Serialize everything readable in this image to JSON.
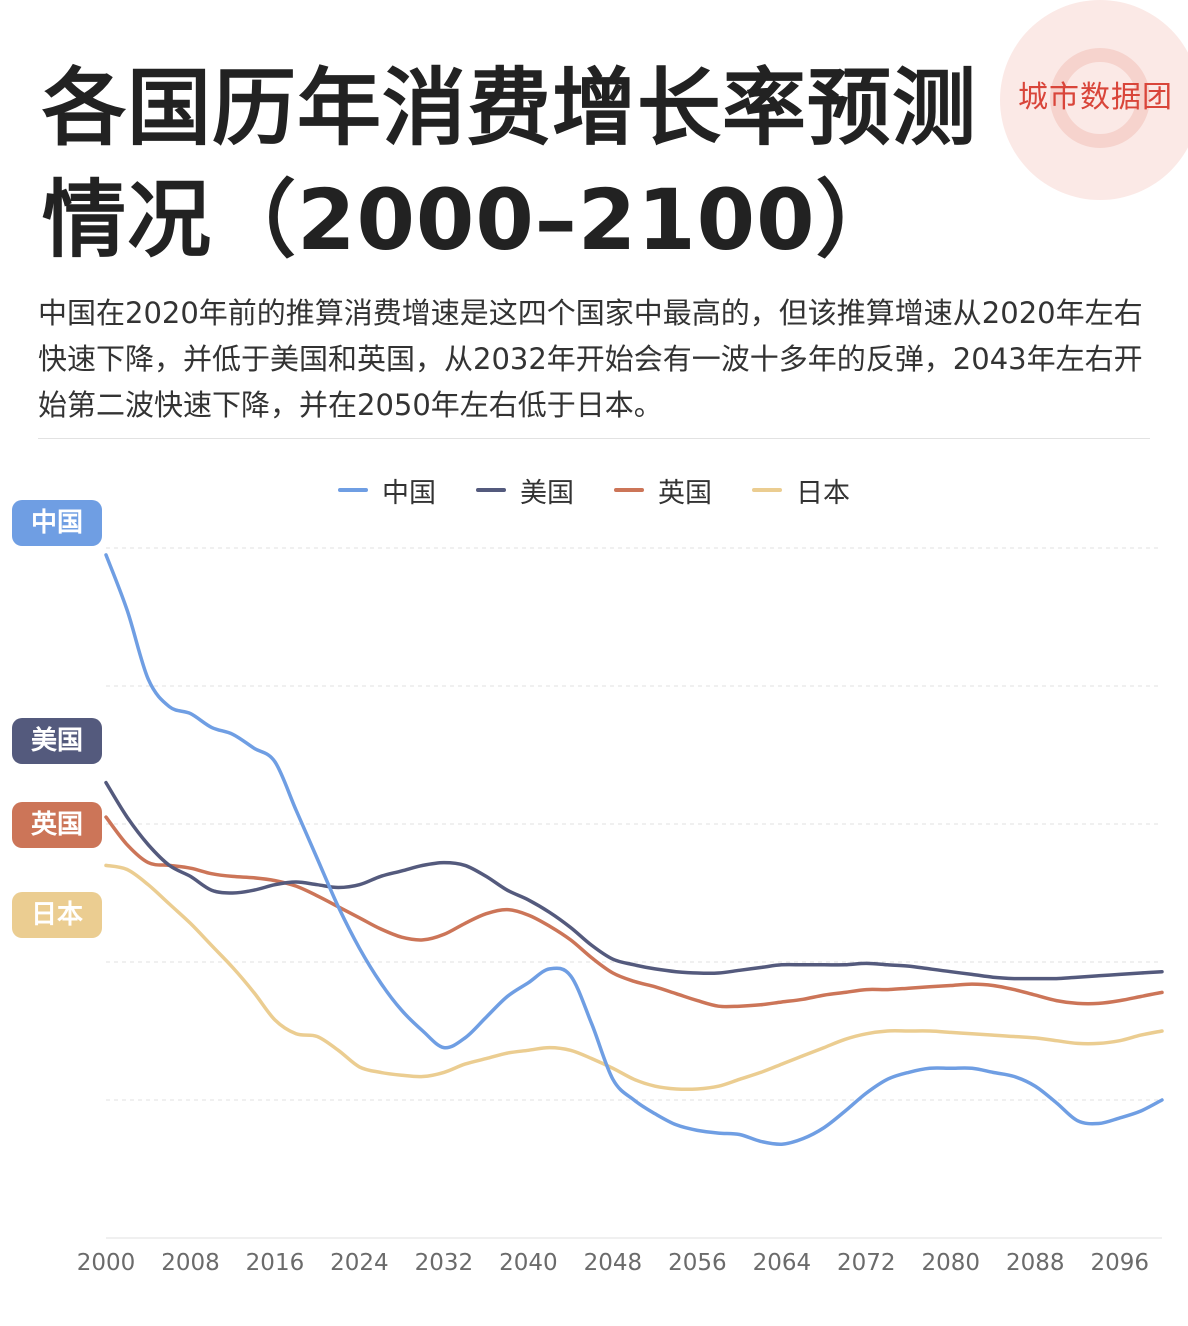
{
  "header": {
    "title": "各国历年消费增长率预测情况（2000–2100）",
    "brand": "城市数据团",
    "description": "中国在2020年前的推算消费增速是这四个国家中最高的，但该推算增速从2020年左右快速下降，并低于美国和英国，从2032年开始会有一波十多年的反弹，2043年左右开始第二波快速下降，并在2050年左右低于日本。"
  },
  "colors": {
    "china": "#6f9ee3",
    "usa": "#545a7d",
    "uk": "#cc7558",
    "japan": "#ebcd91",
    "grid": "#e6e6e6",
    "brand": "#d9453a"
  },
  "chart_data": {
    "type": "line",
    "title": "各国历年消费增长率预测情况（2000–2100）",
    "xlabel": "",
    "ylabel": "",
    "x_ticks": [
      "2000",
      "2008",
      "2016",
      "2024",
      "2032",
      "2040",
      "2048",
      "2056",
      "2064",
      "2072",
      "2080",
      "2088",
      "2096"
    ],
    "xlim": [
      2000,
      2100
    ],
    "ylim": [
      0,
      5
    ],
    "grid": true,
    "legend_position": "top-center",
    "series": [
      {
        "name": "中国",
        "color_key": "china",
        "x": [
          2000,
          2002,
          2004,
          2006,
          2008,
          2010,
          2012,
          2014,
          2016,
          2018,
          2020,
          2022,
          2024,
          2026,
          2028,
          2030,
          2032,
          2034,
          2036,
          2038,
          2040,
          2042,
          2044,
          2046,
          2048,
          2050,
          2052,
          2054,
          2056,
          2058,
          2060,
          2062,
          2064,
          2066,
          2068,
          2070,
          2072,
          2074,
          2076,
          2078,
          2080,
          2082,
          2084,
          2086,
          2088,
          2090,
          2092,
          2094,
          2096,
          2098,
          2100
        ],
        "values": [
          4.95,
          4.55,
          4.05,
          3.85,
          3.8,
          3.7,
          3.65,
          3.55,
          3.45,
          3.1,
          2.75,
          2.4,
          2.1,
          1.85,
          1.65,
          1.5,
          1.38,
          1.45,
          1.6,
          1.75,
          1.85,
          1.95,
          1.9,
          1.55,
          1.15,
          1.0,
          0.9,
          0.82,
          0.78,
          0.76,
          0.75,
          0.7,
          0.68,
          0.72,
          0.8,
          0.92,
          1.05,
          1.15,
          1.2,
          1.23,
          1.23,
          1.23,
          1.2,
          1.17,
          1.1,
          0.98,
          0.85,
          0.83,
          0.87,
          0.92,
          1.0
        ]
      },
      {
        "name": "美国",
        "color_key": "usa",
        "x": [
          2000,
          2002,
          2004,
          2006,
          2008,
          2010,
          2012,
          2014,
          2016,
          2018,
          2020,
          2022,
          2024,
          2026,
          2028,
          2030,
          2032,
          2034,
          2036,
          2038,
          2040,
          2042,
          2044,
          2046,
          2048,
          2050,
          2052,
          2054,
          2056,
          2058,
          2060,
          2062,
          2064,
          2066,
          2068,
          2070,
          2072,
          2074,
          2076,
          2078,
          2080,
          2082,
          2084,
          2086,
          2088,
          2090,
          2092,
          2094,
          2096,
          2098,
          2100
        ],
        "values": [
          3.3,
          3.05,
          2.85,
          2.7,
          2.62,
          2.52,
          2.5,
          2.52,
          2.56,
          2.58,
          2.56,
          2.54,
          2.56,
          2.62,
          2.66,
          2.7,
          2.72,
          2.7,
          2.62,
          2.52,
          2.45,
          2.36,
          2.25,
          2.12,
          2.02,
          1.98,
          1.95,
          1.93,
          1.92,
          1.92,
          1.94,
          1.96,
          1.98,
          1.98,
          1.98,
          1.98,
          1.99,
          1.98,
          1.97,
          1.95,
          1.93,
          1.91,
          1.89,
          1.88,
          1.88,
          1.88,
          1.89,
          1.9,
          1.91,
          1.92,
          1.93
        ]
      },
      {
        "name": "英国",
        "color_key": "uk",
        "x": [
          2000,
          2002,
          2004,
          2006,
          2008,
          2010,
          2012,
          2014,
          2016,
          2018,
          2020,
          2022,
          2024,
          2026,
          2028,
          2030,
          2032,
          2034,
          2036,
          2038,
          2040,
          2042,
          2044,
          2046,
          2048,
          2050,
          2052,
          2054,
          2056,
          2058,
          2060,
          2062,
          2064,
          2066,
          2068,
          2070,
          2072,
          2074,
          2076,
          2078,
          2080,
          2082,
          2084,
          2086,
          2088,
          2090,
          2092,
          2094,
          2096,
          2098,
          2100
        ],
        "values": [
          3.05,
          2.85,
          2.72,
          2.7,
          2.68,
          2.64,
          2.62,
          2.61,
          2.59,
          2.55,
          2.48,
          2.4,
          2.32,
          2.24,
          2.18,
          2.16,
          2.2,
          2.28,
          2.35,
          2.38,
          2.34,
          2.26,
          2.16,
          2.03,
          1.92,
          1.86,
          1.82,
          1.77,
          1.72,
          1.68,
          1.68,
          1.69,
          1.71,
          1.73,
          1.76,
          1.78,
          1.8,
          1.8,
          1.81,
          1.82,
          1.83,
          1.84,
          1.83,
          1.8,
          1.76,
          1.72,
          1.7,
          1.7,
          1.72,
          1.75,
          1.78
        ]
      },
      {
        "name": "日本",
        "color_key": "japan",
        "x": [
          2000,
          2002,
          2004,
          2006,
          2008,
          2010,
          2012,
          2014,
          2016,
          2018,
          2020,
          2022,
          2024,
          2026,
          2028,
          2030,
          2032,
          2034,
          2036,
          2038,
          2040,
          2042,
          2044,
          2046,
          2048,
          2050,
          2052,
          2054,
          2056,
          2058,
          2060,
          2062,
          2064,
          2066,
          2068,
          2070,
          2072,
          2074,
          2076,
          2078,
          2080,
          2082,
          2084,
          2086,
          2088,
          2090,
          2092,
          2094,
          2096,
          2098,
          2100
        ],
        "values": [
          2.7,
          2.67,
          2.56,
          2.42,
          2.28,
          2.12,
          1.96,
          1.78,
          1.58,
          1.48,
          1.46,
          1.36,
          1.24,
          1.2,
          1.18,
          1.17,
          1.2,
          1.26,
          1.3,
          1.34,
          1.36,
          1.38,
          1.36,
          1.3,
          1.23,
          1.15,
          1.1,
          1.08,
          1.08,
          1.1,
          1.15,
          1.2,
          1.26,
          1.32,
          1.38,
          1.44,
          1.48,
          1.5,
          1.5,
          1.5,
          1.49,
          1.48,
          1.47,
          1.46,
          1.45,
          1.43,
          1.41,
          1.41,
          1.43,
          1.47,
          1.5
        ]
      }
    ]
  }
}
